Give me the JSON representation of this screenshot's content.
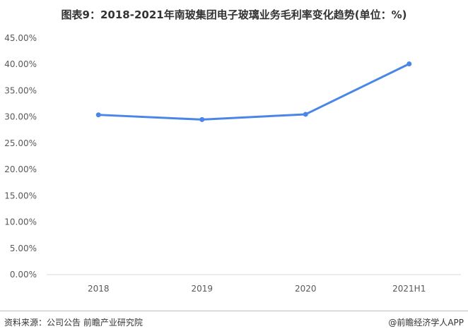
{
  "chart_data": {
    "type": "line",
    "title": "图表9：2018-2021年南玻集团电子玻璃业务毛利率变化趋势(单位：%)",
    "categories": [
      "2018",
      "2019",
      "2020",
      "2021H1"
    ],
    "series": [
      {
        "values": [
          30.4,
          29.5,
          30.5,
          40.1
        ]
      }
    ],
    "y_ticks": [
      "0.00%",
      "5.00%",
      "10.00%",
      "15.00%",
      "20.00%",
      "25.00%",
      "30.00%",
      "35.00%",
      "40.00%",
      "45.00%"
    ],
    "ylim": [
      0,
      45
    ],
    "grid": false,
    "line_color": "#4A86E8"
  },
  "footer": {
    "source": "资料来源：公司公告 前瞻产业研究院",
    "watermark": "@前瞻经济学人APP"
  }
}
